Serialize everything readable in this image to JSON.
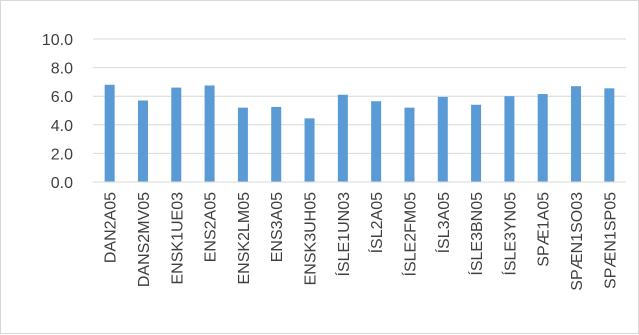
{
  "chart_data": {
    "type": "bar",
    "categories": [
      "DAN2A05",
      "DANS2MV05",
      "ENSK1UE03",
      "ENS2A05",
      "ENSK2LM05",
      "ENS3A05",
      "ENSK3UH05",
      "ÍSLE1UN03",
      "ÍSL2A05",
      "ÍSLE2FM05",
      "ÍSL3A05",
      "ÍSLE3BN05",
      "ÍSLE3YN05",
      "SPÆ1A05",
      "SPÆN1SO03",
      "SPÆN1SP05"
    ],
    "values": [
      6.8,
      5.7,
      6.6,
      6.75,
      5.2,
      5.25,
      4.45,
      6.1,
      5.65,
      5.2,
      5.95,
      5.4,
      6.0,
      6.15,
      6.7,
      6.55
    ],
    "title": "",
    "xlabel": "",
    "ylabel": "",
    "ylim": [
      0,
      10
    ],
    "yticks": [
      "0.0",
      "2.0",
      "4.0",
      "6.0",
      "8.0",
      "10.0"
    ],
    "grid": true,
    "bar_color": "#5b9bd5",
    "grid_color": "#d9d9d9"
  }
}
